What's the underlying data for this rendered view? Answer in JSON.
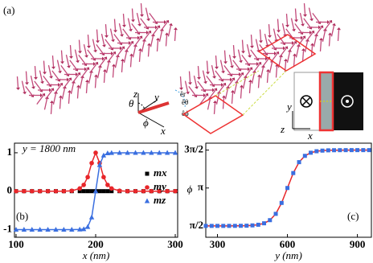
{
  "diagram": {
    "panel_label": "(a)",
    "frame_labels": [
      "x",
      "y",
      "z",
      "θ",
      "ϕ",
      "êr",
      "êθ",
      "êϕ"
    ],
    "inset_labels": [
      "y",
      "z",
      "x"
    ]
  },
  "chart_data": [
    {
      "type": "line",
      "panel_label": "(b)",
      "annotation": "y = 1800 nm",
      "xlabel": "x (nm)",
      "x": [
        100,
        110,
        120,
        130,
        140,
        150,
        160,
        170,
        180,
        185,
        190,
        195,
        200,
        205,
        210,
        215,
        220,
        230,
        240,
        250,
        260,
        270,
        280,
        290,
        300
      ],
      "series": [
        {
          "name": "mx",
          "color": "#000000",
          "marker": "square",
          "line": false,
          "values": [
            0,
            0,
            0,
            0,
            0,
            0,
            0,
            0,
            0,
            0,
            0,
            0,
            0,
            0,
            0,
            0,
            0,
            0,
            0,
            0,
            0,
            0,
            0,
            0,
            0
          ]
        },
        {
          "name": "my",
          "color": "#e8262a",
          "marker": "circle",
          "line": true,
          "values": [
            0,
            0,
            0,
            0,
            0,
            0,
            0,
            0.01,
            0.071,
            0.163,
            0.366,
            0.731,
            1,
            0.731,
            0.366,
            0.163,
            0.071,
            0.01,
            0,
            0,
            0,
            0,
            0,
            0,
            0
          ]
        },
        {
          "name": "mz",
          "color": "#3a6fe0",
          "marker": "triangle",
          "line": true,
          "values": [
            -1,
            -1,
            -1,
            -1,
            -1,
            -1,
            -1,
            -1,
            -0.997,
            -0.987,
            -0.931,
            -0.682,
            0,
            0.682,
            0.931,
            0.987,
            0.997,
            1,
            1,
            1,
            1,
            1,
            1,
            1,
            1
          ]
        }
      ],
      "xlim": [
        98,
        303
      ],
      "xticks": [
        100,
        200,
        300
      ],
      "ylim": [
        -1.2,
        1.25
      ],
      "yticks": [
        -1,
        0,
        1
      ],
      "legend": "right"
    },
    {
      "type": "line",
      "panel_label": "(c)",
      "xlabel": "y (nm)",
      "ylabel": "ϕ",
      "x": [
        250,
        275,
        300,
        325,
        350,
        375,
        400,
        425,
        450,
        475,
        500,
        525,
        550,
        575,
        600,
        625,
        650,
        675,
        700,
        725,
        750,
        775,
        800,
        825,
        850,
        875,
        900,
        925,
        950
      ],
      "values": [
        1.571,
        1.571,
        1.571,
        1.571,
        1.572,
        1.573,
        1.575,
        1.58,
        1.592,
        1.619,
        1.679,
        1.809,
        2.07,
        2.523,
        3.142,
        3.761,
        4.213,
        4.474,
        4.604,
        4.665,
        4.691,
        4.703,
        4.708,
        4.71,
        4.711,
        4.712,
        4.712,
        4.712,
        4.712
      ],
      "color": "#e8262a",
      "marker_color": "#3a6fe0",
      "marker": "square",
      "xlim": [
        250,
        960
      ],
      "xticks": [
        300,
        600,
        900
      ],
      "ylim": [
        1.1,
        5.0
      ],
      "yticks": [
        {
          "value": 1.5708,
          "label": "π/2"
        },
        {
          "value": 3.1416,
          "label": "π"
        },
        {
          "value": 4.7124,
          "label": "3π/2"
        }
      ]
    }
  ]
}
